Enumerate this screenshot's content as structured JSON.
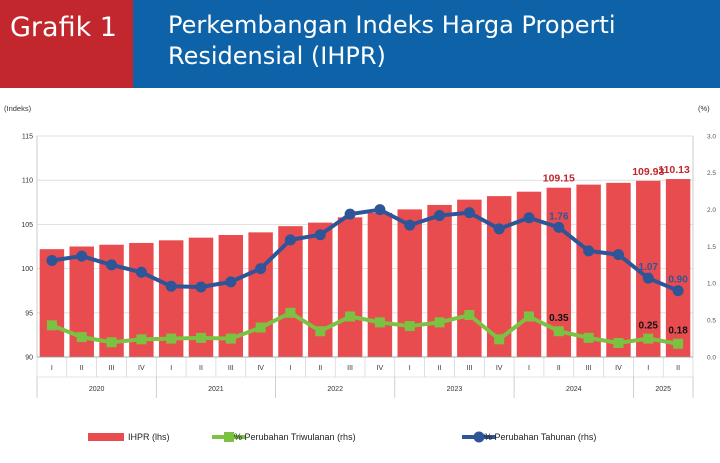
{
  "header": {
    "tag": "Grafik 1",
    "title": "Perkembangan Indeks Harga Properti Residensial (IHPR)"
  },
  "colors": {
    "header_blue": "#0e63a8",
    "header_red": "#c1272d",
    "bar": "#e84c4f",
    "line_yoy": "#2e5597",
    "line_qtq": "#7cc242",
    "label_red": "#c1272d"
  },
  "chart_data": {
    "type": "bar",
    "left_axis_label": "(Indeks)",
    "right_axis_label": "(%)",
    "ylim_left": [
      90,
      115
    ],
    "yticks_left": [
      "90",
      "95",
      "100",
      "105",
      "110",
      "115"
    ],
    "ylim_right": [
      0.0,
      3.0
    ],
    "yticks_right": [
      "0.0",
      "0.5",
      "1.0",
      "1.5",
      "2.0",
      "2.5",
      "3.0"
    ],
    "grid": true,
    "legend_position": "bottom",
    "quarters": [
      "I",
      "II",
      "III",
      "IV",
      "I",
      "II",
      "III",
      "IV",
      "I",
      "II",
      "III",
      "IV",
      "I",
      "II",
      "III",
      "IV",
      "I",
      "II",
      "III",
      "IV",
      "I",
      "II"
    ],
    "years": [
      {
        "label": "2020",
        "span": 4
      },
      {
        "label": "2021",
        "span": 4
      },
      {
        "label": "2022",
        "span": 4
      },
      {
        "label": "2023",
        "span": 4
      },
      {
        "label": "2024",
        "span": 4
      },
      {
        "label": "2025",
        "span": 2
      }
    ],
    "series": [
      {
        "name": "IHPR (lhs)",
        "type": "bar",
        "axis": "left",
        "values": [
          102.2,
          102.5,
          102.7,
          102.9,
          103.2,
          103.5,
          103.8,
          104.1,
          104.8,
          105.2,
          105.8,
          106.3,
          106.7,
          107.2,
          107.8,
          108.2,
          108.7,
          109.15,
          109.5,
          109.7,
          109.93,
          110.13
        ]
      },
      {
        "name": "% Perubahan Triwulanan (rhs)",
        "type": "line",
        "axis": "right",
        "values": [
          0.43,
          0.27,
          0.2,
          0.24,
          0.25,
          0.26,
          0.25,
          0.4,
          0.6,
          0.35,
          0.55,
          0.47,
          0.42,
          0.47,
          0.57,
          0.24,
          0.55,
          0.35,
          0.26,
          0.19,
          0.25,
          0.18
        ]
      },
      {
        "name": "% Perubahan Tahunan (rhs)",
        "type": "line",
        "axis": "right",
        "values": [
          1.31,
          1.37,
          1.25,
          1.15,
          0.96,
          0.95,
          1.02,
          1.2,
          1.59,
          1.66,
          1.94,
          2.0,
          1.79,
          1.92,
          1.96,
          1.74,
          1.89,
          1.76,
          1.44,
          1.39,
          1.07,
          0.9
        ]
      }
    ],
    "data_labels": {
      "bar": [
        {
          "index": 17,
          "text": "109.15"
        },
        {
          "index": 20,
          "text": "109.93"
        },
        {
          "index": 21,
          "text": "110.13"
        }
      ],
      "yoy": [
        {
          "index": 17,
          "text": "1.76"
        },
        {
          "index": 20,
          "text": "1.07"
        },
        {
          "index": 21,
          "text": "0.90"
        }
      ],
      "qtq": [
        {
          "index": 17,
          "text": "0.35"
        },
        {
          "index": 20,
          "text": "0.25"
        },
        {
          "index": 21,
          "text": "0.18"
        }
      ]
    }
  }
}
